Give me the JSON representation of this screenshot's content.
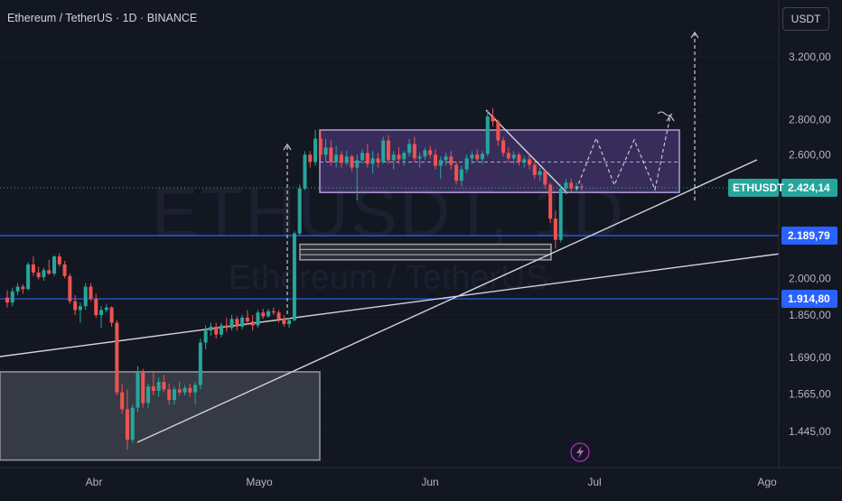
{
  "header": {
    "title": "Ethereum / TetherUS · 1D · BINANCE",
    "currency": "USDT"
  },
  "watermark": {
    "main": "ETHUSDT, 1D",
    "sub": "Ethereum / TetherUS"
  },
  "colors": {
    "background": "#131722",
    "up": "#26a69a",
    "down": "#ef5350",
    "hline": "#2962ff",
    "zone_fill": "#7e57c2",
    "trendline": "#d1d4dc",
    "last_price_tag": "#26a69a"
  },
  "icons": {
    "flash": "lightning-icon"
  },
  "chart_data": {
    "type": "candlestick",
    "symbol": "ETHUSDT",
    "title": "Ethereum / TetherUS · 1D · BINANCE",
    "x_ticks": [
      "Abr",
      "Mayo",
      "Jun",
      "Jul",
      "Ago"
    ],
    "y_ticks": [
      "3.200,00",
      "2.800,00",
      "2.600,00",
      "2.000,00",
      "1.850,00",
      "1.690,00",
      "1.565,00",
      "1.445,00"
    ],
    "y_range": [
      1340,
      3500
    ],
    "y_scale": "log",
    "last_price": {
      "label": "ETHUSDT",
      "value": "2.424,14"
    },
    "horizontal_levels": [
      {
        "value": "2.189,79"
      },
      {
        "value": "1.914,80"
      }
    ],
    "candles": [
      [
        1920,
        1950,
        1880,
        1900
      ],
      [
        1900,
        1960,
        1885,
        1945
      ],
      [
        1945,
        1980,
        1930,
        1965
      ],
      [
        1965,
        1975,
        1935,
        1955
      ],
      [
        1955,
        2070,
        1950,
        2060
      ],
      [
        2060,
        2095,
        2010,
        2025
      ],
      [
        2025,
        2050,
        1995,
        2005
      ],
      [
        2005,
        2045,
        1990,
        2035
      ],
      [
        2035,
        2080,
        2015,
        2020
      ],
      [
        2020,
        2100,
        2010,
        2095
      ],
      [
        2095,
        2110,
        2050,
        2060
      ],
      [
        2060,
        2075,
        2000,
        2010
      ],
      [
        2010,
        2020,
        1895,
        1905
      ],
      [
        1905,
        1930,
        1850,
        1870
      ],
      [
        1870,
        1900,
        1820,
        1885
      ],
      [
        1885,
        1980,
        1870,
        1965
      ],
      [
        1965,
        1980,
        1905,
        1915
      ],
      [
        1915,
        1935,
        1840,
        1850
      ],
      [
        1850,
        1885,
        1800,
        1870
      ],
      [
        1870,
        1895,
        1860,
        1880
      ],
      [
        1880,
        1885,
        1805,
        1820
      ],
      [
        1820,
        1830,
        1560,
        1570
      ],
      [
        1570,
        1600,
        1500,
        1515
      ],
      [
        1515,
        1580,
        1390,
        1420
      ],
      [
        1420,
        1530,
        1410,
        1520
      ],
      [
        1520,
        1660,
        1505,
        1640
      ],
      [
        1640,
        1650,
        1520,
        1535
      ],
      [
        1535,
        1600,
        1520,
        1590
      ],
      [
        1590,
        1640,
        1560,
        1575
      ],
      [
        1575,
        1620,
        1555,
        1605
      ],
      [
        1605,
        1630,
        1570,
        1580
      ],
      [
        1580,
        1600,
        1530,
        1545
      ],
      [
        1545,
        1590,
        1530,
        1580
      ],
      [
        1580,
        1605,
        1560,
        1570
      ],
      [
        1570,
        1595,
        1560,
        1585
      ],
      [
        1585,
        1600,
        1555,
        1570
      ],
      [
        1570,
        1605,
        1530,
        1595
      ],
      [
        1595,
        1760,
        1580,
        1745
      ],
      [
        1745,
        1810,
        1720,
        1790
      ],
      [
        1790,
        1820,
        1770,
        1805
      ],
      [
        1805,
        1820,
        1760,
        1775
      ],
      [
        1775,
        1820,
        1765,
        1810
      ],
      [
        1810,
        1840,
        1785,
        1800
      ],
      [
        1800,
        1850,
        1790,
        1835
      ],
      [
        1835,
        1845,
        1790,
        1805
      ],
      [
        1805,
        1850,
        1795,
        1840
      ],
      [
        1840,
        1870,
        1810,
        1825
      ],
      [
        1825,
        1850,
        1790,
        1810
      ],
      [
        1810,
        1870,
        1800,
        1860
      ],
      [
        1860,
        1875,
        1835,
        1845
      ],
      [
        1845,
        1875,
        1840,
        1865
      ],
      [
        1865,
        1880,
        1850,
        1860
      ],
      [
        1860,
        1870,
        1820,
        1835
      ],
      [
        1835,
        1850,
        1805,
        1815
      ],
      [
        1815,
        1840,
        1800,
        1830
      ],
      [
        1830,
        2210,
        1825,
        2200
      ],
      [
        2200,
        2440,
        2190,
        2420
      ],
      [
        2420,
        2620,
        2410,
        2600
      ],
      [
        2600,
        2620,
        2530,
        2560
      ],
      [
        2560,
        2740,
        2540,
        2690
      ],
      [
        2690,
        2740,
        2570,
        2600
      ],
      [
        2600,
        2690,
        2560,
        2640
      ],
      [
        2640,
        2680,
        2540,
        2560
      ],
      [
        2560,
        2650,
        2530,
        2600
      ],
      [
        2600,
        2620,
        2530,
        2555
      ],
      [
        2555,
        2620,
        2540,
        2590
      ],
      [
        2590,
        2600,
        2510,
        2530
      ],
      [
        2530,
        2600,
        2360,
        2570
      ],
      [
        2570,
        2630,
        2550,
        2610
      ],
      [
        2610,
        2660,
        2530,
        2550
      ],
      [
        2550,
        2620,
        2500,
        2580
      ],
      [
        2580,
        2610,
        2530,
        2560
      ],
      [
        2560,
        2700,
        2550,
        2680
      ],
      [
        2680,
        2710,
        2550,
        2570
      ],
      [
        2570,
        2620,
        2520,
        2600
      ],
      [
        2600,
        2640,
        2550,
        2575
      ],
      [
        2575,
        2620,
        2540,
        2610
      ],
      [
        2610,
        2690,
        2590,
        2660
      ],
      [
        2660,
        2700,
        2560,
        2580
      ],
      [
        2580,
        2610,
        2530,
        2590
      ],
      [
        2590,
        2640,
        2570,
        2625
      ],
      [
        2625,
        2650,
        2580,
        2600
      ],
      [
        2600,
        2630,
        2520,
        2540
      ],
      [
        2540,
        2590,
        2470,
        2570
      ],
      [
        2570,
        2610,
        2540,
        2590
      ],
      [
        2590,
        2620,
        2520,
        2545
      ],
      [
        2545,
        2560,
        2440,
        2460
      ],
      [
        2460,
        2540,
        2430,
        2520
      ],
      [
        2520,
        2600,
        2500,
        2580
      ],
      [
        2580,
        2620,
        2550,
        2600
      ],
      [
        2600,
        2630,
        2560,
        2575
      ],
      [
        2575,
        2620,
        2550,
        2605
      ],
      [
        2605,
        2860,
        2590,
        2820
      ],
      [
        2820,
        2870,
        2760,
        2790
      ],
      [
        2790,
        2800,
        2650,
        2680
      ],
      [
        2680,
        2700,
        2590,
        2610
      ],
      [
        2610,
        2640,
        2560,
        2580
      ],
      [
        2580,
        2620,
        2550,
        2600
      ],
      [
        2600,
        2610,
        2540,
        2560
      ],
      [
        2560,
        2590,
        2530,
        2575
      ],
      [
        2575,
        2600,
        2520,
        2545
      ],
      [
        2545,
        2560,
        2470,
        2490
      ],
      [
        2490,
        2530,
        2460,
        2510
      ],
      [
        2510,
        2520,
        2420,
        2440
      ],
      [
        2440,
        2450,
        2250,
        2270
      ],
      [
        2270,
        2310,
        2130,
        2170
      ],
      [
        2170,
        2440,
        2160,
        2420
      ],
      [
        2420,
        2470,
        2390,
        2450
      ],
      [
        2450,
        2470,
        2400,
        2420
      ],
      [
        2420,
        2450,
        2400,
        2430
      ],
      [
        2430,
        2445,
        2410,
        2425
      ]
    ],
    "zones": [
      {
        "type": "rectangle",
        "top": "2.740",
        "bottom": "2.400"
      },
      {
        "type": "rectangle",
        "top": "2.150",
        "bottom": "2.080"
      },
      {
        "type": "rectangle",
        "top": "1.640",
        "bottom": "1.360"
      }
    ]
  }
}
